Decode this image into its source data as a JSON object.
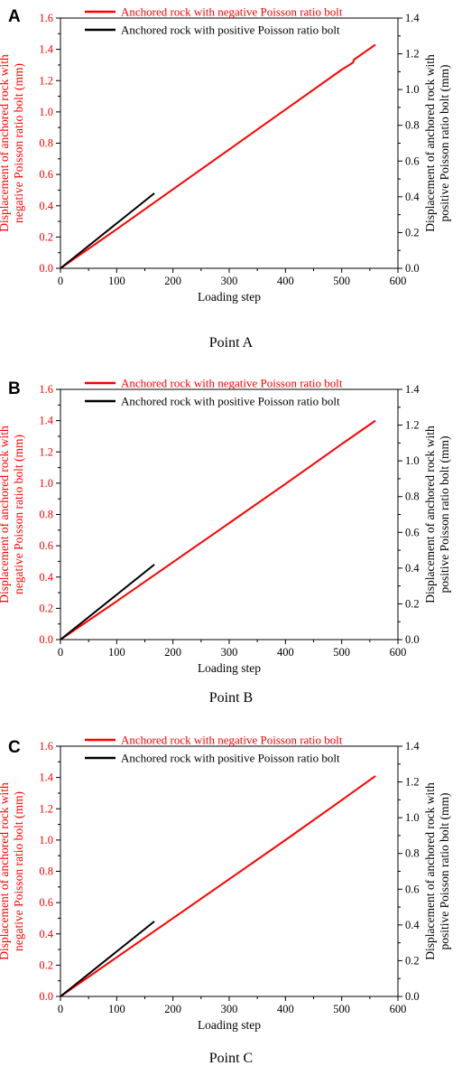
{
  "chart_data": [
    {
      "type": "line",
      "panel": "A",
      "caption": "Point A",
      "xlabel": "Loading step",
      "ylabel_left": [
        "Displacement of anchored rock with",
        "negative Poisson ratio bolt (mm)"
      ],
      "ylabel_right": [
        "Displacement of anchored rock with",
        "positive  Poisson ratio bolt (mm)"
      ],
      "xlim": [
        0,
        600
      ],
      "ylim_left": [
        0,
        1.6
      ],
      "ylim_right": [
        0,
        1.4
      ],
      "xticks": [
        "0",
        "100",
        "200",
        "300",
        "400",
        "500",
        "600"
      ],
      "yticks_left": [
        "0.0",
        "0.2",
        "0.4",
        "0.6",
        "0.8",
        "1.0",
        "1.2",
        "1.4",
        "1.6"
      ],
      "yticks_right": [
        "0.0",
        "0.2",
        "0.4",
        "0.6",
        "0.8",
        "1.0",
        "1.2",
        "1.4"
      ],
      "legend_position": "top",
      "series": [
        {
          "name": "Anchored rock with negative Poisson ratio bolt",
          "color": "#ff0000",
          "axis": "left",
          "x": [
            0,
            100,
            200,
            300,
            400,
            500,
            520,
            522,
            560
          ],
          "y": [
            0,
            0.25,
            0.505,
            0.76,
            1.015,
            1.27,
            1.315,
            1.335,
            1.43
          ]
        },
        {
          "name": "Anchored rock with positive  Poisson ratio bolt",
          "color": "#000000",
          "axis": "right",
          "x": [
            0,
            167
          ],
          "y": [
            0,
            0.42
          ]
        }
      ]
    },
    {
      "type": "line",
      "panel": "B",
      "caption": "Point B",
      "xlabel": "Loading step",
      "ylabel_left": [
        "Displacement of anchored rock with",
        "negative Poisson ratio bolt (mm)"
      ],
      "ylabel_right": [
        "Displacement of anchored rock with",
        "positive  Poisson ratio bolt (mm)"
      ],
      "xlim": [
        0,
        600
      ],
      "ylim_left": [
        0,
        1.6
      ],
      "ylim_right": [
        0,
        1.4
      ],
      "xticks": [
        "0",
        "100",
        "200",
        "300",
        "400",
        "500",
        "600"
      ],
      "yticks_left": [
        "0.0",
        "0.2",
        "0.4",
        "0.6",
        "0.8",
        "1.0",
        "1.2",
        "1.4",
        "1.6"
      ],
      "yticks_right": [
        "0.0",
        "0.2",
        "0.4",
        "0.6",
        "0.8",
        "1.0",
        "1.2",
        "1.4"
      ],
      "legend_position": "top",
      "series": [
        {
          "name": "Anchored rock with negative Poisson ratio bolt",
          "color": "#ff0000",
          "axis": "left",
          "x": [
            0,
            100,
            200,
            300,
            400,
            500,
            560
          ],
          "y": [
            0,
            0.245,
            0.495,
            0.745,
            0.995,
            1.25,
            1.4
          ]
        },
        {
          "name": "Anchored rock with positive  Poisson ratio bolt",
          "color": "#000000",
          "axis": "right",
          "x": [
            0,
            167
          ],
          "y": [
            0,
            0.42
          ]
        }
      ]
    },
    {
      "type": "line",
      "panel": "C",
      "caption": "Point C",
      "xlabel": "Loading step",
      "ylabel_left": [
        "Displacement of anchored rock with",
        "negative Poisson ratio bolt (mm)"
      ],
      "ylabel_right": [
        "Displacement of anchored rock with",
        "positive  Poisson ratio bolt (mm)"
      ],
      "xlim": [
        0,
        600
      ],
      "ylim_left": [
        0,
        1.6
      ],
      "ylim_right": [
        0,
        1.4
      ],
      "xticks": [
        "0",
        "100",
        "200",
        "300",
        "400",
        "500",
        "600"
      ],
      "yticks_left": [
        "0.0",
        "0.2",
        "0.4",
        "0.6",
        "0.8",
        "1.0",
        "1.2",
        "1.4",
        "1.6"
      ],
      "yticks_right": [
        "0.0",
        "0.2",
        "0.4",
        "0.6",
        "0.8",
        "1.0",
        "1.2",
        "1.4"
      ],
      "legend_position": "top",
      "series": [
        {
          "name": "Anchored rock with negative Poisson ratio bolt",
          "color": "#ff0000",
          "axis": "left",
          "x": [
            0,
            100,
            200,
            300,
            400,
            500,
            560
          ],
          "y": [
            0,
            0.25,
            0.5,
            0.75,
            1.0,
            1.255,
            1.41
          ]
        },
        {
          "name": "Anchored rock with positive  Poisson ratio bolt",
          "color": "#000000",
          "axis": "right",
          "x": [
            0,
            167
          ],
          "y": [
            0,
            0.42
          ]
        }
      ]
    }
  ]
}
